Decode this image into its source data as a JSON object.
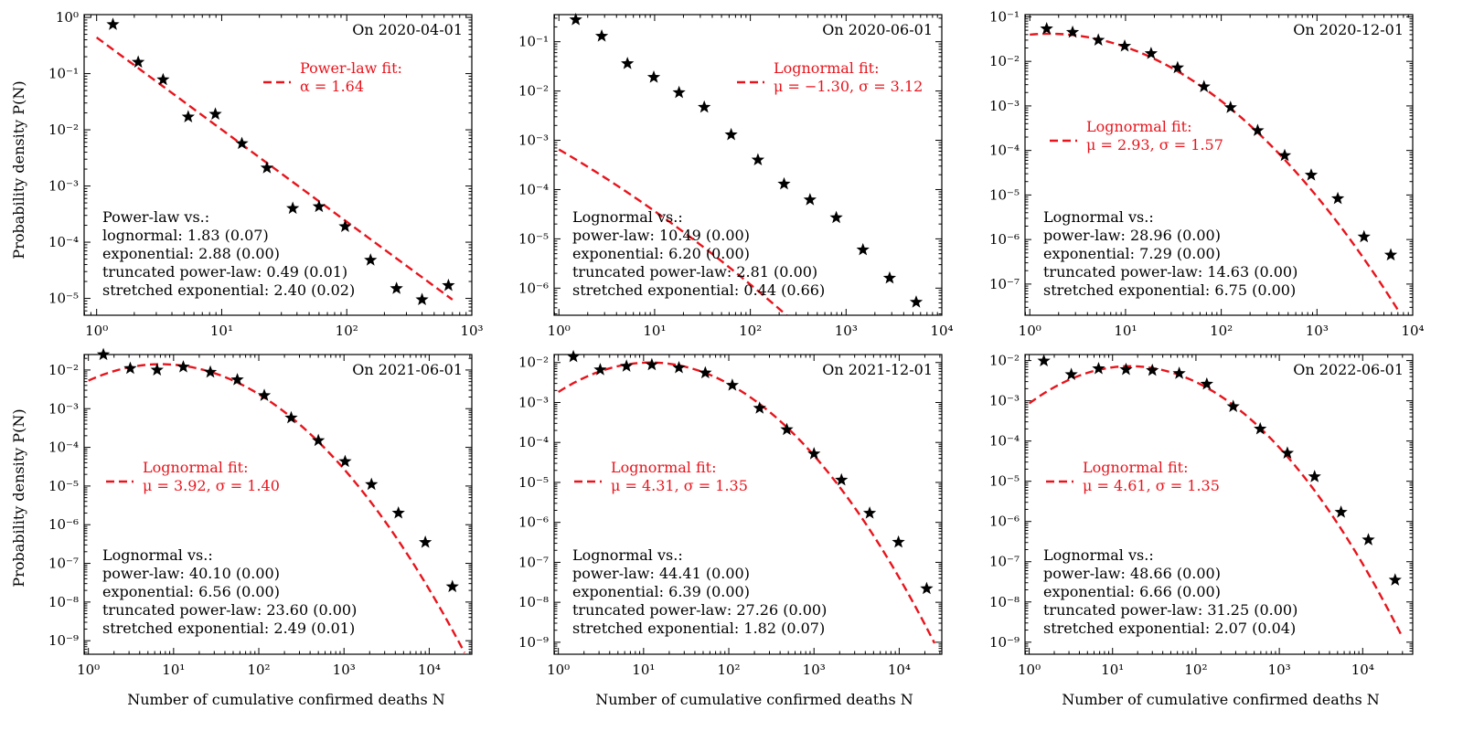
{
  "figure": {
    "ylabel": "Probability density P(N)",
    "xlabel": "Number of cumulative confirmed deaths N"
  },
  "chart_data": [
    {
      "type": "scatter",
      "title": "On 2020-04-01",
      "xlim_exp": [
        -0.1,
        3.0
      ],
      "ylim_exp": [
        -5.3,
        0.05
      ],
      "x_tick_exps": [
        0,
        1,
        2,
        3
      ],
      "y_tick_exps": [
        -5,
        -4,
        -3,
        -2,
        -1,
        0
      ],
      "points": [
        [
          1.35,
          0.75
        ],
        [
          2.15,
          0.16
        ],
        [
          3.4,
          0.078
        ],
        [
          5.4,
          0.017
        ],
        [
          8.9,
          0.019
        ],
        [
          14.5,
          0.0057
        ],
        [
          23,
          0.0021
        ],
        [
          37,
          0.0004
        ],
        [
          60,
          0.00043
        ],
        [
          97,
          0.00019
        ],
        [
          155,
          4.8e-05
        ],
        [
          250,
          1.5e-05
        ],
        [
          400,
          9.5e-06
        ],
        [
          650,
          1.7e-05
        ]
      ],
      "fit": {
        "model": "power-law",
        "alpha": 1.64,
        "scale": 0.44,
        "x_range": [
          1.0,
          700.0
        ]
      },
      "fit_label": [
        "Power-law fit:",
        "α = 1.64"
      ],
      "comparison_title": "Power-law vs.:",
      "comparison": [
        {
          "name": "lognormal",
          "value": "1.83",
          "p": "(0.07)"
        },
        {
          "name": "exponential",
          "value": "2.88",
          "p": "(0.00)"
        },
        {
          "name": "truncated power-law",
          "value": "0.49",
          "p": "(0.01)"
        },
        {
          "name": "stretched exponential",
          "value": "2.40",
          "p": "(0.02)"
        }
      ]
    },
    {
      "type": "scatter",
      "title": "On 2020-06-01",
      "xlim_exp": [
        -0.05,
        4.0
      ],
      "ylim_exp": [
        -6.55,
        -0.45
      ],
      "x_tick_exps": [
        0,
        1,
        2,
        3,
        4
      ],
      "y_tick_exps": [
        -6,
        -5,
        -4,
        -3,
        -2,
        -1
      ],
      "points": [
        [
          1.5,
          0.28
        ],
        [
          2.8,
          0.13
        ],
        [
          5.2,
          0.036
        ],
        [
          9.8,
          0.019
        ],
        [
          18,
          0.0093
        ],
        [
          33,
          0.0047
        ],
        [
          63,
          0.0013
        ],
        [
          120,
          0.0004
        ],
        [
          225,
          0.00013
        ],
        [
          420,
          6.2e-05
        ],
        [
          790,
          2.7e-05
        ],
        [
          1500,
          6e-06
        ],
        [
          2850,
          1.6e-06
        ],
        [
          5400,
          5.2e-07
        ]
      ],
      "fit": {
        "model": "lognormal",
        "mu": -1.3,
        "sigma": 3.12,
        "peak_log10": -0.47,
        "x_range": [
          1.0,
          7000.0
        ]
      },
      "fit_label": [
        "Lognormal fit:",
        "μ = −1.30,  σ = 3.12"
      ],
      "comparison_title": "Lognormal vs.:",
      "comparison": [
        {
          "name": "power-law",
          "value": "10.49",
          "p": "(0.00)"
        },
        {
          "name": "exponential",
          "value": "6.20",
          "p": "(0.00)"
        },
        {
          "name": "truncated power-law",
          "value": "2.81",
          "p": "(0.00)"
        },
        {
          "name": "stretched exponential",
          "value": "0.44",
          "p": "(0.66)"
        }
      ]
    },
    {
      "type": "scatter",
      "title": "On 2020-12-01",
      "xlim_exp": [
        -0.05,
        4.0
      ],
      "ylim_exp": [
        -7.7,
        -0.95
      ],
      "x_tick_exps": [
        0,
        1,
        2,
        3,
        4
      ],
      "y_tick_exps": [
        -7,
        -6,
        -5,
        -4,
        -3,
        -2,
        -1
      ],
      "points": [
        [
          1.5,
          0.054
        ],
        [
          2.8,
          0.045
        ],
        [
          5.2,
          0.03
        ],
        [
          9.8,
          0.022
        ],
        [
          18.5,
          0.015
        ],
        [
          35,
          0.0072
        ],
        [
          66,
          0.0027
        ],
        [
          125,
          0.00092
        ],
        [
          240,
          0.00028
        ],
        [
          460,
          7.7e-05
        ],
        [
          870,
          2.8e-05
        ],
        [
          1650,
          8.3e-06
        ],
        [
          3100,
          1.15e-06
        ],
        [
          5900,
          4.5e-07
        ]
      ],
      "fit": {
        "model": "lognormal",
        "mu": 2.93,
        "sigma": 1.57,
        "peak_log10": -1.38,
        "x_range": [
          1.0,
          7000.0
        ]
      },
      "fit_label": [
        "Lognormal fit:",
        "μ = 2.93,  σ = 1.57"
      ],
      "comparison_title": "Lognormal vs.:",
      "comparison": [
        {
          "name": "power-law",
          "value": "28.96",
          "p": "(0.00)"
        },
        {
          "name": "exponential",
          "value": "7.29",
          "p": "(0.00)"
        },
        {
          "name": "truncated power-law",
          "value": "14.63",
          "p": "(0.00)"
        },
        {
          "name": "stretched exponential",
          "value": "6.75",
          "p": "(0.00)"
        }
      ]
    },
    {
      "type": "scatter",
      "title": "On 2021-06-01",
      "xlim_exp": [
        -0.05,
        4.5
      ],
      "ylim_exp": [
        -9.35,
        -1.6
      ],
      "x_tick_exps": [
        0,
        1,
        2,
        3,
        4
      ],
      "y_tick_exps": [
        -9,
        -8,
        -7,
        -6,
        -5,
        -4,
        -3,
        -2
      ],
      "points": [
        [
          1.5,
          0.025
        ],
        [
          3.1,
          0.011
        ],
        [
          6.4,
          0.01
        ],
        [
          13,
          0.012
        ],
        [
          27,
          0.0088
        ],
        [
          56,
          0.0056
        ],
        [
          116,
          0.0022
        ],
        [
          240,
          0.00058
        ],
        [
          500,
          0.00015
        ],
        [
          1030,
          4.3e-05
        ],
        [
          2100,
          1.1e-05
        ],
        [
          4350,
          2e-06
        ],
        [
          9000,
          3.5e-07
        ],
        [
          18700,
          2.5e-08
        ]
      ],
      "fit": {
        "model": "lognormal",
        "mu": 3.92,
        "sigma": 1.4,
        "peak_log10": -1.85,
        "x_range": [
          1.0,
          26000.0
        ]
      },
      "fit_label": [
        "Lognormal fit:",
        "μ = 3.92,  σ = 1.40"
      ],
      "comparison_title": "Lognormal vs.:",
      "comparison": [
        {
          "name": "power-law",
          "value": "40.10",
          "p": "(0.00)"
        },
        {
          "name": "exponential",
          "value": "6.56",
          "p": "(0.00)"
        },
        {
          "name": "truncated power-law",
          "value": "23.60",
          "p": "(0.00)"
        },
        {
          "name": "stretched exponential",
          "value": "2.49",
          "p": "(0.01)"
        }
      ]
    },
    {
      "type": "scatter",
      "title": "On 2021-12-01",
      "xlim_exp": [
        -0.05,
        4.5
      ],
      "ylim_exp": [
        -9.3,
        -1.8
      ],
      "x_tick_exps": [
        0,
        1,
        2,
        3,
        4
      ],
      "y_tick_exps": [
        -9,
        -8,
        -7,
        -6,
        -5,
        -4,
        -3,
        -2
      ],
      "points": [
        [
          1.5,
          0.014
        ],
        [
          3.1,
          0.0066
        ],
        [
          6.3,
          0.0081
        ],
        [
          12.5,
          0.0088
        ],
        [
          26,
          0.0074
        ],
        [
          53,
          0.0055
        ],
        [
          110,
          0.0027
        ],
        [
          230,
          0.00072
        ],
        [
          480,
          0.00021
        ],
        [
          1000,
          5.2e-05
        ],
        [
          2100,
          1.15e-05
        ],
        [
          4500,
          1.7e-06
        ],
        [
          9800,
          3.2e-07
        ],
        [
          21000,
          2.2e-08
        ]
      ],
      "fit": {
        "model": "lognormal",
        "mu": 4.31,
        "sigma": 1.35,
        "peak_log10": -2.0,
        "x_range": [
          1.0,
          26000.0
        ]
      },
      "fit_label": [
        "Lognormal fit:",
        "μ = 4.31,  σ = 1.35"
      ],
      "comparison_title": "Lognormal vs.:",
      "comparison": [
        {
          "name": "power-law",
          "value": "44.41",
          "p": "(0.00)"
        },
        {
          "name": "exponential",
          "value": "6.39",
          "p": "(0.00)"
        },
        {
          "name": "truncated power-law",
          "value": "27.26",
          "p": "(0.00)"
        },
        {
          "name": "stretched exponential",
          "value": "1.82",
          "p": "(0.07)"
        }
      ]
    },
    {
      "type": "scatter",
      "title": "On 2022-06-01",
      "xlim_exp": [
        -0.05,
        4.6
      ],
      "ylim_exp": [
        -9.3,
        -1.85
      ],
      "x_tick_exps": [
        0,
        1,
        2,
        3,
        4
      ],
      "y_tick_exps": [
        -9,
        -8,
        -7,
        -6,
        -5,
        -4,
        -3,
        -2
      ],
      "points": [
        [
          1.5,
          0.0098
        ],
        [
          3.2,
          0.0045
        ],
        [
          6.8,
          0.0063
        ],
        [
          14.5,
          0.006
        ],
        [
          30,
          0.0057
        ],
        [
          63,
          0.0048
        ],
        [
          135,
          0.0026
        ],
        [
          280,
          0.00072
        ],
        [
          590,
          0.0002
        ],
        [
          1250,
          5e-05
        ],
        [
          2650,
          1.3e-05
        ],
        [
          5500,
          1.7e-06
        ],
        [
          11700,
          3.5e-07
        ],
        [
          24500,
          3.5e-08
        ]
      ],
      "fit": {
        "model": "lognormal",
        "mu": 4.61,
        "sigma": 1.35,
        "peak_log10": -2.14,
        "x_range": [
          1.0,
          30000.0
        ]
      },
      "fit_label": [
        "Lognormal fit:",
        "μ = 4.61,  σ = 1.35"
      ],
      "comparison_title": "Lognormal vs.:",
      "comparison": [
        {
          "name": "power-law",
          "value": "48.66",
          "p": "(0.00)"
        },
        {
          "name": "exponential",
          "value": "6.66",
          "p": "(0.00)"
        },
        {
          "name": "truncated power-law",
          "value": "31.25",
          "p": "(0.00)"
        },
        {
          "name": "stretched exponential",
          "value": "2.07",
          "p": "(0.04)"
        }
      ]
    }
  ]
}
